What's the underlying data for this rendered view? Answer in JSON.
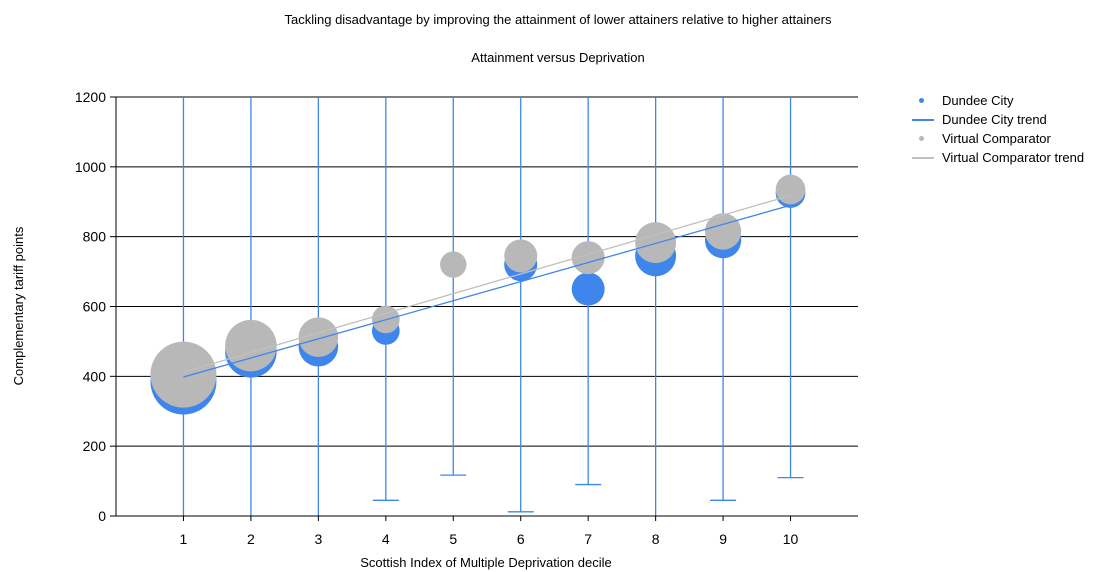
{
  "chart_data": {
    "type": "scatter",
    "title": "Tackling disadvantage by improving the attainment of lower attainers relative to higher attainers",
    "subtitle": "Attainment versus Deprivation",
    "xlabel": "Scottish Index of Multiple Deprivation decile",
    "ylabel": "Complementary tariff points",
    "xlim": [
      0,
      11
    ],
    "ylim": [
      0,
      1200
    ],
    "x_ticks": [
      "1",
      "2",
      "3",
      "4",
      "5",
      "6",
      "7",
      "8",
      "9",
      "10"
    ],
    "y_ticks": [
      "0",
      "200",
      "400",
      "600",
      "800",
      "1000",
      "1200"
    ],
    "grid": "horizontal",
    "legend_position": "right",
    "series": [
      {
        "name": "Dundee City",
        "kind": "bubble",
        "color": "#3f86ec",
        "points": [
          {
            "x": 1,
            "y": 385,
            "size": 1.0
          },
          {
            "x": 2,
            "y": 470,
            "size": 0.78
          },
          {
            "x": 3,
            "y": 485,
            "size": 0.6
          },
          {
            "x": 4,
            "y": 530,
            "size": 0.42
          },
          {
            "x": 6,
            "y": 720,
            "size": 0.5
          },
          {
            "x": 7,
            "y": 650,
            "size": 0.5
          },
          {
            "x": 8,
            "y": 745,
            "size": 0.62
          },
          {
            "x": 9,
            "y": 790,
            "size": 0.55
          },
          {
            "x": 10,
            "y": 925,
            "size": 0.45
          }
        ],
        "ranges": [
          {
            "x": 1,
            "min": 0,
            "max": 1200
          },
          {
            "x": 2,
            "min": 0,
            "max": 1200
          },
          {
            "x": 3,
            "min": 0,
            "max": 1200
          },
          {
            "x": 4,
            "min": 45,
            "max": 1200
          },
          {
            "x": 5,
            "min": 117,
            "max": 1200
          },
          {
            "x": 6,
            "min": 12,
            "max": 1200
          },
          {
            "x": 7,
            "min": 90,
            "max": 1200
          },
          {
            "x": 8,
            "min": 0,
            "max": 1200
          },
          {
            "x": 9,
            "min": 45,
            "max": 1200
          },
          {
            "x": 10,
            "min": 110,
            "max": 1200
          }
        ]
      },
      {
        "name": "Dundee City trend",
        "kind": "line",
        "color": "#3f86ec",
        "points": [
          {
            "x": 1,
            "y": 398
          },
          {
            "x": 10,
            "y": 890
          }
        ]
      },
      {
        "name": "Virtual Comparator",
        "kind": "bubble",
        "color": "#b8b8b8",
        "points": [
          {
            "x": 1,
            "y": 405,
            "size": 1.0
          },
          {
            "x": 2,
            "y": 488,
            "size": 0.78
          },
          {
            "x": 3,
            "y": 512,
            "size": 0.6
          },
          {
            "x": 4,
            "y": 563,
            "size": 0.42
          },
          {
            "x": 5,
            "y": 720,
            "size": 0.4
          },
          {
            "x": 6,
            "y": 745,
            "size": 0.5
          },
          {
            "x": 7,
            "y": 740,
            "size": 0.5
          },
          {
            "x": 8,
            "y": 783,
            "size": 0.62
          },
          {
            "x": 9,
            "y": 815,
            "size": 0.55
          },
          {
            "x": 10,
            "y": 935,
            "size": 0.45
          }
        ]
      },
      {
        "name": "Virtual Comparator trend",
        "kind": "line",
        "color": "#c0c0c0",
        "points": [
          {
            "x": 1,
            "y": 412
          },
          {
            "x": 10,
            "y": 918
          }
        ]
      }
    ]
  }
}
